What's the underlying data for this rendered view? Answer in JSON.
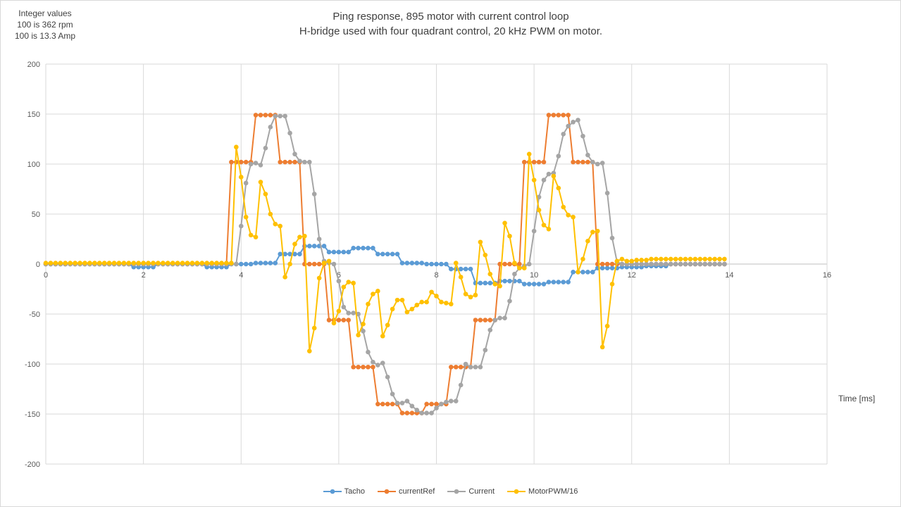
{
  "chart_data": {
    "type": "line",
    "title": [
      "Ping response, 895 motor with current control loop",
      "H-bridge used with four quadrant control, 20 kHz PWM on motor."
    ],
    "notes": [
      "Integer values",
      "100 is 362 rpm",
      "100 is 13.3 Amp"
    ],
    "xlabel": "Time [ms]",
    "ylabel": "",
    "xlim": [
      0,
      16
    ],
    "ylim": [
      -200,
      200
    ],
    "x_ticks": [
      0,
      2,
      4,
      6,
      8,
      10,
      12,
      14,
      16
    ],
    "y_ticks": [
      200,
      150,
      100,
      50,
      0,
      -50,
      -100,
      -150,
      -200
    ],
    "grid": true,
    "legend_position": "bottom",
    "x_start": 0,
    "x_step": 0.1,
    "series": [
      {
        "name": "Tacho",
        "color": "#5B9BD5",
        "values": [
          0,
          0,
          0,
          0,
          0,
          0,
          0,
          0,
          0,
          0,
          0,
          0,
          0,
          0,
          0,
          0,
          0,
          0,
          -3,
          -3,
          -3,
          -3,
          -3,
          0,
          0,
          0,
          0,
          0,
          0,
          0,
          0,
          0,
          0,
          -3,
          -3,
          -3,
          -3,
          -3,
          0,
          0,
          0,
          0,
          0,
          1,
          1,
          1,
          1,
          1,
          10,
          10,
          10,
          10,
          10,
          18,
          18,
          18,
          18,
          18,
          12,
          12,
          12,
          12,
          12,
          16,
          16,
          16,
          16,
          16,
          10,
          10,
          10,
          10,
          10,
          1,
          1,
          1,
          1,
          1,
          0,
          0,
          0,
          0,
          0,
          -5,
          -5,
          -5,
          -5,
          -5,
          -19,
          -19,
          -19,
          -19,
          -19,
          -17,
          -17,
          -17,
          -17,
          -17,
          -20,
          -20,
          -20,
          -20,
          -20,
          -18,
          -18,
          -18,
          -18,
          -18,
          -8,
          -8,
          -8,
          -8,
          -8,
          -4,
          -4,
          -4,
          -4,
          -4,
          -3,
          -3,
          -3,
          -3,
          -3,
          -2,
          -2,
          -2,
          -2,
          -2,
          0,
          0,
          0,
          0,
          0,
          0,
          0,
          0,
          0,
          0,
          0,
          0
        ]
      },
      {
        "name": "currentRef",
        "color": "#ED7D31",
        "values": [
          0,
          0,
          0,
          0,
          0,
          0,
          0,
          0,
          0,
          0,
          0,
          0,
          0,
          0,
          0,
          0,
          0,
          0,
          0,
          0,
          0,
          0,
          0,
          0,
          0,
          0,
          0,
          0,
          0,
          0,
          0,
          0,
          0,
          0,
          0,
          0,
          0,
          0,
          102,
          102,
          102,
          102,
          102,
          149,
          149,
          149,
          149,
          149,
          102,
          102,
          102,
          102,
          102,
          0,
          0,
          0,
          0,
          0,
          -56,
          -56,
          -56,
          -56,
          -56,
          -103,
          -103,
          -103,
          -103,
          -103,
          -140,
          -140,
          -140,
          -140,
          -140,
          -149,
          -149,
          -149,
          -149,
          -149,
          -140,
          -140,
          -140,
          -140,
          -140,
          -103,
          -103,
          -103,
          -103,
          -103,
          -56,
          -56,
          -56,
          -56,
          -56,
          0,
          0,
          0,
          0,
          0,
          102,
          102,
          102,
          102,
          102,
          149,
          149,
          149,
          149,
          149,
          102,
          102,
          102,
          102,
          102,
          0,
          0,
          0,
          0,
          0,
          0,
          0,
          0,
          0,
          0,
          0,
          0,
          0,
          0,
          0,
          0,
          0,
          0,
          0,
          0,
          0,
          0,
          0,
          0,
          0,
          0,
          0
        ]
      },
      {
        "name": "Current",
        "color": "#A5A5A5",
        "values": [
          0,
          0,
          0,
          0,
          0,
          0,
          0,
          0,
          0,
          0,
          0,
          0,
          0,
          0,
          0,
          0,
          0,
          0,
          0,
          0,
          0,
          0,
          0,
          0,
          0,
          0,
          0,
          0,
          0,
          0,
          0,
          0,
          0,
          0,
          0,
          0,
          0,
          0,
          0,
          0,
          38,
          81,
          100,
          101,
          99,
          116,
          137,
          148,
          148,
          148,
          131,
          110,
          103,
          102,
          102,
          70,
          25,
          3,
          1,
          0,
          -17,
          -43,
          -49,
          -49,
          -50,
          -67,
          -88,
          -98,
          -101,
          -99,
          -113,
          -130,
          -139,
          -139,
          -137,
          -142,
          -146,
          -149,
          -149,
          -149,
          -144,
          -140,
          -138,
          -137,
          -137,
          -121,
          -100,
          -103,
          -103,
          -103,
          -86,
          -66,
          -56,
          -54,
          -54,
          -37,
          -10,
          -4,
          -2,
          0,
          33,
          67,
          84,
          90,
          91,
          108,
          130,
          138,
          142,
          144,
          128,
          109,
          102,
          100,
          101,
          71,
          26,
          2,
          0,
          0,
          0,
          0,
          0,
          0,
          0,
          0,
          0,
          0,
          0,
          0,
          0,
          0,
          0,
          0,
          0,
          0,
          0,
          0,
          0,
          0
        ]
      },
      {
        "name": "MotorPWM/16",
        "color": "#FFC000",
        "values": [
          1,
          1,
          1,
          1,
          1,
          1,
          1,
          1,
          1,
          1,
          1,
          1,
          1,
          1,
          1,
          1,
          1,
          1,
          1,
          1,
          1,
          1,
          1,
          1,
          1,
          1,
          1,
          1,
          1,
          1,
          1,
          1,
          1,
          1,
          1,
          1,
          1,
          1,
          1,
          117,
          87,
          47,
          29,
          27,
          82,
          70,
          50,
          40,
          38,
          -13,
          0,
          20,
          27,
          28,
          -87,
          -64,
          -14,
          1,
          3,
          -59,
          -47,
          -23,
          -18,
          -19,
          -71,
          -60,
          -40,
          -30,
          -27,
          -72,
          -61,
          -45,
          -36,
          -36,
          -48,
          -45,
          -41,
          -38,
          -38,
          -28,
          -32,
          -38,
          -39,
          -40,
          1,
          -13,
          -30,
          -33,
          -31,
          22,
          9,
          -10,
          -20,
          -22,
          41,
          28,
          1,
          -4,
          -4,
          110,
          84,
          54,
          39,
          35,
          88,
          76,
          57,
          49,
          47,
          -8,
          5,
          23,
          32,
          33,
          -83,
          -62,
          -20,
          3,
          5,
          3,
          3,
          4,
          4,
          4,
          5,
          5,
          5,
          5,
          5,
          5,
          5,
          5,
          5,
          5,
          5,
          5,
          5,
          5,
          5,
          5
        ]
      }
    ]
  }
}
